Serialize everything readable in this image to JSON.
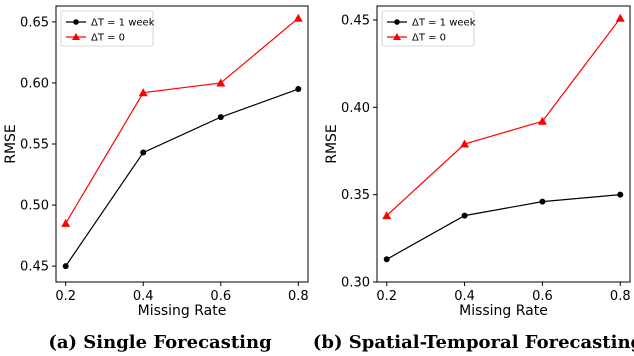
{
  "chart_data": [
    {
      "type": "line",
      "caption": "(a) Single Forecasting",
      "xlabel": "Missing Rate",
      "ylabel": "RMSE",
      "x": [
        0.2,
        0.4,
        0.6,
        0.8
      ],
      "xticks": [
        "0.2",
        "0.4",
        "0.6",
        "0.8"
      ],
      "xlim": [
        0.175,
        0.825
      ],
      "yticks": [
        "0.45",
        "0.50",
        "0.55",
        "0.60",
        "0.65"
      ],
      "ytick_values": [
        0.45,
        0.5,
        0.55,
        0.6,
        0.65
      ],
      "ylim": [
        0.437,
        0.663
      ],
      "legend": "top-left",
      "grid": false,
      "series": [
        {
          "name": "ΔT = 1 week",
          "color": "#000000",
          "marker": "circle",
          "values": [
            0.45,
            0.543,
            0.572,
            0.595
          ]
        },
        {
          "name": "ΔT = 0",
          "color": "#ff0000",
          "marker": "triangle",
          "values": [
            0.485,
            0.592,
            0.6,
            0.653
          ]
        }
      ]
    },
    {
      "type": "line",
      "caption": "(b) Spatial-Temporal Forecasting",
      "xlabel": "Missing Rate",
      "ylabel": "RMSE",
      "x": [
        0.2,
        0.4,
        0.6,
        0.8
      ],
      "xticks": [
        "0.2",
        "0.4",
        "0.6",
        "0.8"
      ],
      "xlim": [
        0.175,
        0.825
      ],
      "yticks": [
        "0.30",
        "0.35",
        "0.40",
        "0.45"
      ],
      "ytick_values": [
        0.3,
        0.35,
        0.4,
        0.45
      ],
      "ylim": [
        0.3,
        0.458
      ],
      "legend": "top-left",
      "grid": false,
      "series": [
        {
          "name": "ΔT = 1 week",
          "color": "#000000",
          "marker": "circle",
          "values": [
            0.313,
            0.338,
            0.346,
            0.35
          ]
        },
        {
          "name": "ΔT = 0",
          "color": "#ff0000",
          "marker": "triangle",
          "values": [
            0.338,
            0.379,
            0.392,
            0.451
          ]
        }
      ]
    }
  ]
}
